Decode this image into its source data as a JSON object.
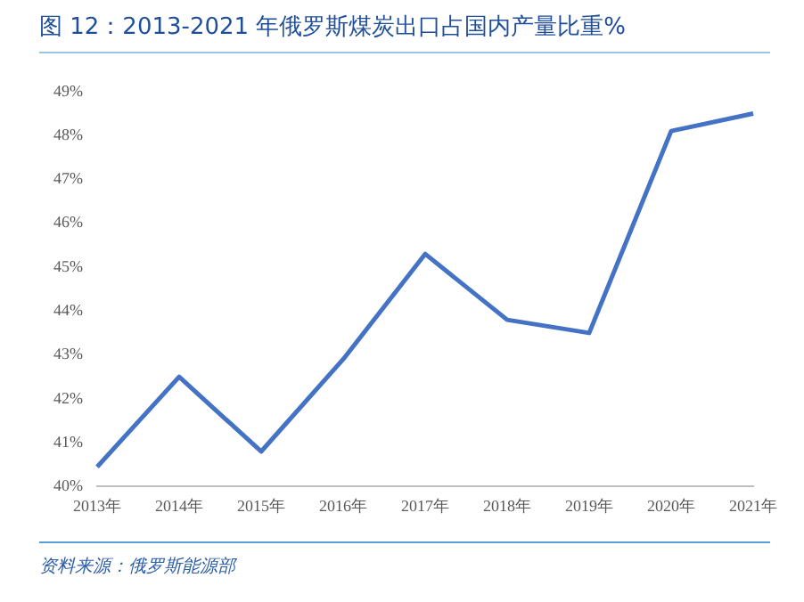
{
  "chart_data": {
    "type": "line",
    "title": "图 12：2013-2021 年俄罗斯煤炭出口占国内产量比重%",
    "categories": [
      "2013年",
      "2014年",
      "2015年",
      "2016年",
      "2017年",
      "2018年",
      "2019年",
      "2020年",
      "2021年"
    ],
    "series": [
      {
        "color": "#4472c4",
        "values": [
          40.45,
          42.5,
          40.8,
          42.9,
          45.3,
          43.8,
          43.5,
          48.1,
          48.5
        ]
      }
    ],
    "ylim": [
      40,
      49
    ],
    "yticks": [
      {
        "value": 40,
        "label": "40%"
      },
      {
        "value": 41,
        "label": "41%"
      },
      {
        "value": 42,
        "label": "42%"
      },
      {
        "value": 43,
        "label": "43%"
      },
      {
        "value": 44,
        "label": "44%"
      },
      {
        "value": 45,
        "label": "45%"
      },
      {
        "value": 46,
        "label": "46%"
      },
      {
        "value": 47,
        "label": "47%"
      },
      {
        "value": 48,
        "label": "48%"
      },
      {
        "value": 49,
        "label": "49%"
      }
    ],
    "grid": false,
    "legend": false,
    "marker": "none",
    "line_style": "solid",
    "annotations": [
      "资料来源：俄罗斯能源部"
    ]
  }
}
